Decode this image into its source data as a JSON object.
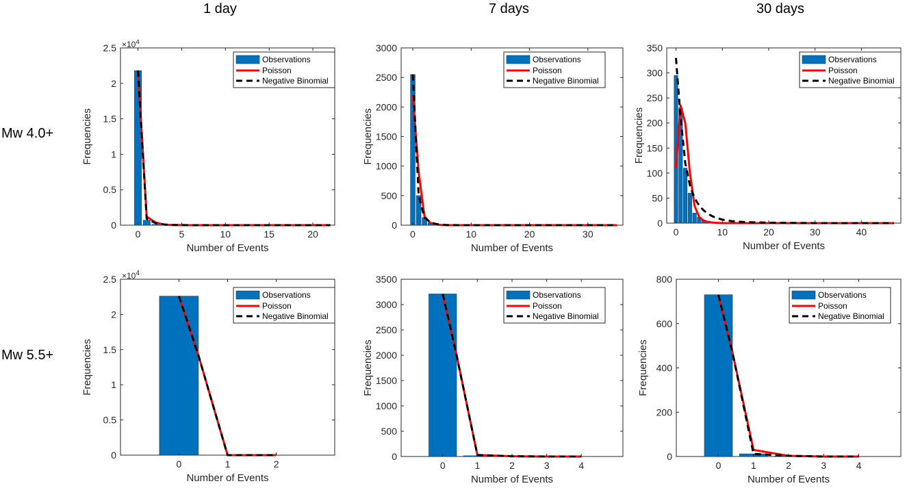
{
  "columns": [
    "1 day",
    "7 days",
    "30 days"
  ],
  "rows": [
    "Mw 4.0+",
    "Mw 5.5+"
  ],
  "colors": {
    "bar": "#0072BD",
    "bar_edge": "#1a3a5c",
    "poisson": "#FF0000",
    "negbin": "#000000",
    "axis": "#262626"
  },
  "chart_data": [
    {
      "type": "bar",
      "xlabel": "Number of Events",
      "ylabel": "Frequencies",
      "xlim": [
        -2,
        22.5
      ],
      "ylim": [
        0,
        25000
      ],
      "xticks": [
        "0",
        "5",
        "10",
        "15",
        "20"
      ],
      "yticks": [
        "0",
        "0.5",
        "1",
        "1.5",
        "2",
        "2.5"
      ],
      "ytick_values": [
        0,
        5000,
        10000,
        15000,
        20000,
        25000
      ],
      "xtick_values": [
        0,
        5,
        10,
        15,
        20
      ],
      "exponent_label": "×10",
      "exponent_power": "4",
      "bar_width": 0.8,
      "bars": {
        "x": [
          0,
          1,
          2,
          3
        ],
        "values": [
          21800,
          700,
          100,
          20
        ]
      },
      "legend": [
        "Observations",
        "Poisson",
        "Negative Binomial"
      ],
      "series": [
        {
          "name": "Poisson",
          "x": [
            0,
            1,
            2,
            3,
            4,
            5,
            6,
            8,
            10,
            15,
            20,
            22
          ],
          "values": [
            21800,
            1200,
            400,
            80,
            20,
            5,
            0,
            0,
            0,
            0,
            0,
            0
          ]
        },
        {
          "name": "Negative Binomial",
          "x": [
            0,
            1,
            2,
            3,
            4,
            5,
            6,
            8,
            10,
            15,
            20,
            22
          ],
          "values": [
            21800,
            900,
            300,
            100,
            40,
            10,
            2,
            0,
            0,
            0,
            0,
            0
          ]
        }
      ]
    },
    {
      "type": "bar",
      "xlabel": "Number of Events",
      "ylabel": "Frequencies",
      "xlim": [
        -2,
        36
      ],
      "ylim": [
        0,
        3000
      ],
      "xticks": [
        "0",
        "10",
        "20",
        "30"
      ],
      "yticks": [
        "0",
        "500",
        "1000",
        "1500",
        "2000",
        "2500",
        "3000"
      ],
      "ytick_values": [
        0,
        500,
        1000,
        1500,
        2000,
        2500,
        3000
      ],
      "xtick_values": [
        0,
        10,
        20,
        30
      ],
      "bar_width": 0.8,
      "bars": {
        "x": [
          0,
          1,
          2,
          3,
          4
        ],
        "values": [
          2550,
          500,
          130,
          40,
          10
        ]
      },
      "legend": [
        "Observations",
        "Poisson",
        "Negative Binomial"
      ],
      "series": [
        {
          "name": "Poisson",
          "x": [
            0,
            1,
            2,
            3,
            4,
            5,
            6,
            8,
            10,
            20,
            30,
            35
          ],
          "values": [
            2200,
            900,
            150,
            40,
            10,
            3,
            0,
            0,
            0,
            0,
            0,
            0
          ]
        },
        {
          "name": "Negative Binomial",
          "x": [
            0,
            1,
            2,
            3,
            4,
            5,
            6,
            8,
            10,
            20,
            30,
            35
          ],
          "values": [
            2550,
            500,
            130,
            50,
            20,
            8,
            2,
            0,
            0,
            0,
            0,
            0
          ]
        }
      ]
    },
    {
      "type": "bar",
      "xlabel": "Number of Events",
      "ylabel": "Frequencies",
      "xlim": [
        -2,
        48.5
      ],
      "ylim": [
        0,
        350
      ],
      "xticks": [
        "0",
        "10",
        "20",
        "30",
        "40"
      ],
      "yticks": [
        "0",
        "50",
        "100",
        "150",
        "200",
        "250",
        "300",
        "350"
      ],
      "ytick_values": [
        0,
        50,
        100,
        150,
        200,
        250,
        300,
        350
      ],
      "xtick_values": [
        0,
        10,
        20,
        30,
        40
      ],
      "bar_width": 0.8,
      "bars": {
        "x": [
          0,
          1,
          2,
          3,
          4,
          5,
          6,
          7,
          8,
          9,
          10,
          11,
          12
        ],
        "values": [
          295,
          230,
          110,
          60,
          20,
          12,
          6,
          4,
          2,
          1,
          1,
          1,
          1
        ]
      },
      "legend": [
        "Observations",
        "Poisson",
        "Negative Binomial"
      ],
      "series": [
        {
          "name": "Poisson",
          "x": [
            0,
            1,
            2,
            3,
            4,
            5,
            6,
            7,
            8,
            10,
            12,
            15,
            20,
            30,
            40,
            47
          ],
          "values": [
            110,
            235,
            200,
            100,
            35,
            12,
            5,
            2,
            1,
            0,
            0,
            0,
            0,
            0,
            0,
            0
          ]
        },
        {
          "name": "Negative Binomial",
          "x": [
            0,
            1,
            2,
            3,
            4,
            5,
            6,
            7,
            8,
            10,
            12,
            15,
            20,
            30,
            40,
            47
          ],
          "values": [
            330,
            210,
            120,
            75,
            50,
            35,
            25,
            18,
            13,
            7,
            4,
            2,
            1,
            0,
            0,
            0
          ]
        }
      ]
    },
    {
      "type": "bar",
      "xlabel": "Number of Events",
      "ylabel": "Frequencies",
      "xlim": [
        -1.2,
        3.2
      ],
      "ylim": [
        0,
        25000
      ],
      "xticks": [
        "0",
        "1",
        "2"
      ],
      "yticks": [
        "0",
        "0.5",
        "1",
        "1.5",
        "2",
        "2.5"
      ],
      "ytick_values": [
        0,
        5000,
        10000,
        15000,
        20000,
        25000
      ],
      "xtick_values": [
        0,
        1,
        2
      ],
      "exponent_label": "×10",
      "exponent_power": "4",
      "bar_width": 0.8,
      "bars": {
        "x": [
          0
        ],
        "values": [
          22600
        ]
      },
      "legend": [
        "Observations",
        "Poisson",
        "Negative Binomial"
      ],
      "series": [
        {
          "name": "Poisson",
          "x": [
            0,
            0.4,
            1,
            2
          ],
          "values": [
            22600,
            14200,
            0,
            0
          ]
        },
        {
          "name": "Negative Binomial",
          "x": [
            0,
            0.4,
            1,
            2
          ],
          "values": [
            22600,
            14200,
            0,
            0
          ]
        }
      ]
    },
    {
      "type": "bar",
      "xlabel": "Number of Events",
      "ylabel": "Frequencies",
      "xlim": [
        -1.2,
        5.2
      ],
      "ylim": [
        0,
        3500
      ],
      "xticks": [
        "0",
        "1",
        "2",
        "3",
        "4"
      ],
      "yticks": [
        "0",
        "500",
        "1000",
        "1500",
        "2000",
        "2500",
        "3000",
        "3500"
      ],
      "ytick_values": [
        0,
        500,
        1000,
        1500,
        2000,
        2500,
        3000,
        3500
      ],
      "xtick_values": [
        0,
        1,
        2,
        3,
        4
      ],
      "bar_width": 0.8,
      "bars": {
        "x": [
          0,
          1
        ],
        "values": [
          3210,
          15
        ]
      },
      "legend": [
        "Observations",
        "Poisson",
        "Negative Binomial"
      ],
      "series": [
        {
          "name": "Poisson",
          "x": [
            0,
            0.4,
            1,
            2,
            3,
            4
          ],
          "values": [
            3210,
            2000,
            30,
            5,
            0,
            0
          ]
        },
        {
          "name": "Negative Binomial",
          "x": [
            0,
            0.4,
            1,
            2,
            3,
            4
          ],
          "values": [
            3210,
            2000,
            30,
            5,
            0,
            0
          ]
        }
      ]
    },
    {
      "type": "bar",
      "xlabel": "Number of Events",
      "ylabel": "Frequencies",
      "xlim": [
        -1.2,
        5.2
      ],
      "ylim": [
        0,
        800
      ],
      "xticks": [
        "0",
        "1",
        "2",
        "3",
        "4"
      ],
      "yticks": [
        "0",
        "200",
        "400",
        "600",
        "800"
      ],
      "ytick_values": [
        0,
        200,
        400,
        600,
        800
      ],
      "xtick_values": [
        0,
        1,
        2,
        3,
        4
      ],
      "bar_width": 0.8,
      "bars": {
        "x": [
          0,
          1,
          2
        ],
        "values": [
          730,
          12,
          2
        ]
      },
      "legend": [
        "Observations",
        "Poisson",
        "Negative Binomial"
      ],
      "series": [
        {
          "name": "Poisson",
          "x": [
            0,
            0.4,
            1,
            2,
            3,
            4
          ],
          "values": [
            730,
            470,
            30,
            3,
            0,
            0
          ]
        },
        {
          "name": "Negative Binomial",
          "x": [
            0,
            0.4,
            1,
            2,
            3,
            4
          ],
          "values": [
            730,
            470,
            12,
            3,
            0,
            0
          ]
        }
      ]
    }
  ]
}
